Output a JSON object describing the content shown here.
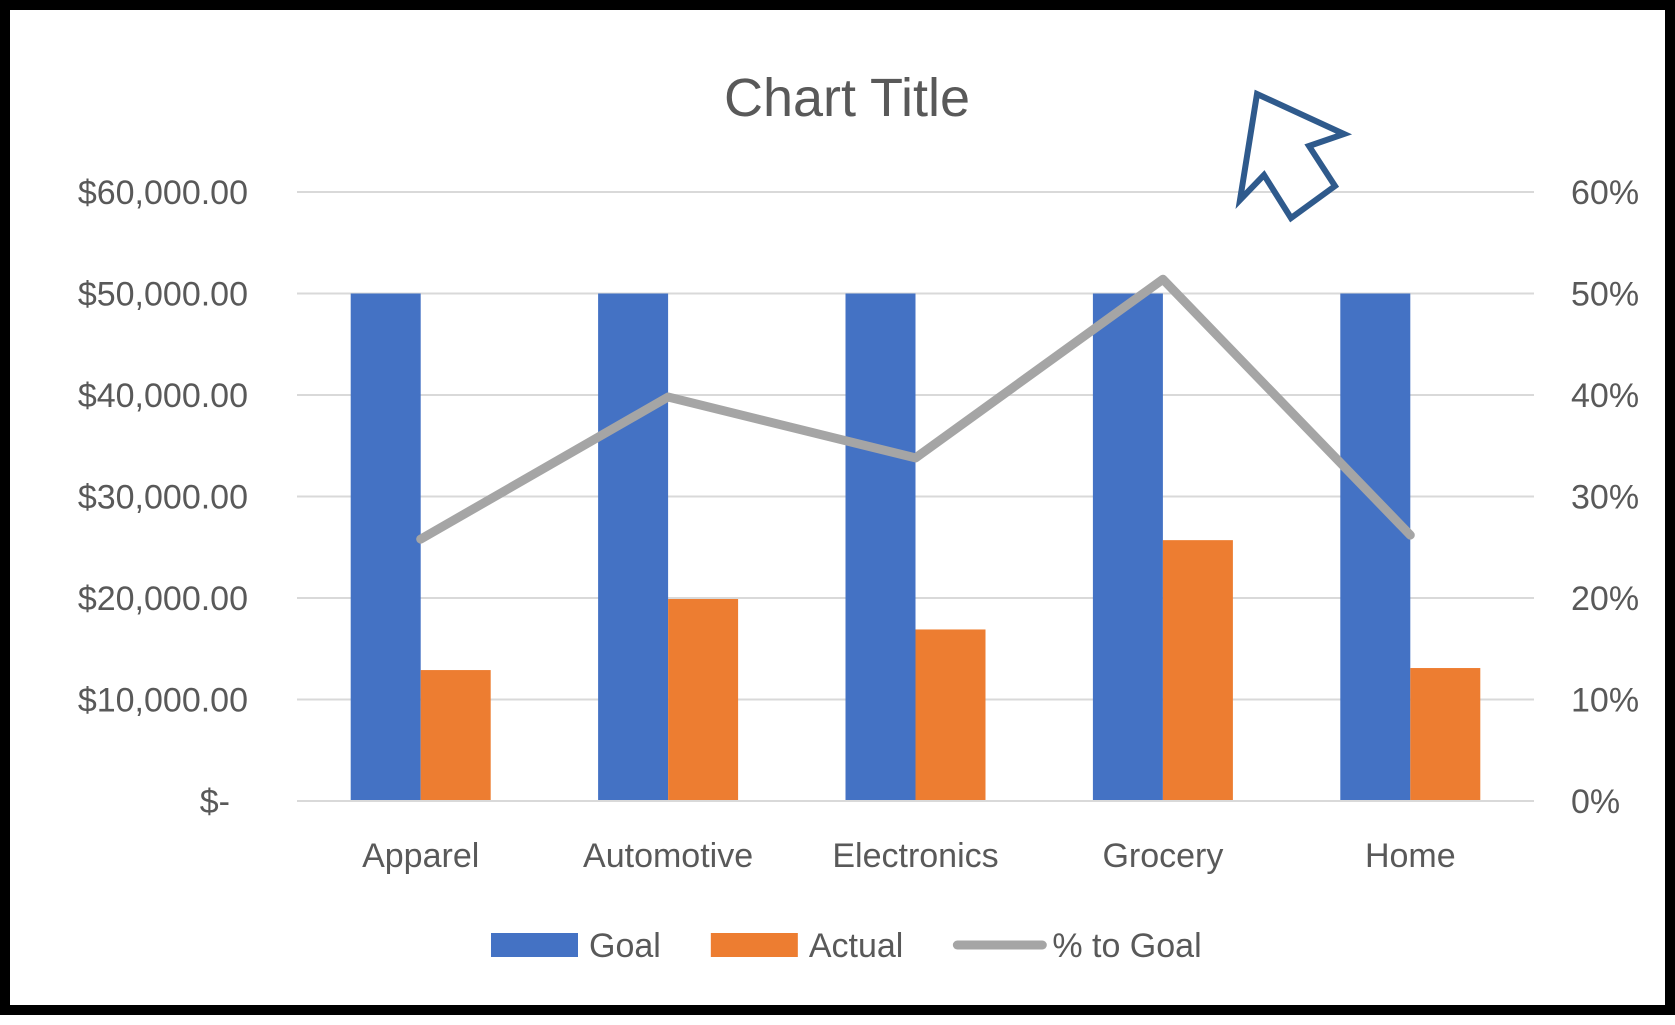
{
  "chart_data": {
    "type": "bar",
    "title": "Chart Title",
    "categories": [
      "Apparel",
      "Automotive",
      "Electronics",
      "Grocery",
      "Home"
    ],
    "series": [
      {
        "name": "Goal",
        "type": "bar",
        "axis": "left",
        "color": "#4472C4",
        "values": [
          50000,
          50000,
          50000,
          50000,
          50000
        ]
      },
      {
        "name": "Actual",
        "type": "bar",
        "axis": "left",
        "color": "#ED7D31",
        "values": [
          12900,
          19900,
          16900,
          25700,
          13100
        ]
      },
      {
        "name": "% to Goal",
        "type": "line",
        "axis": "right",
        "color": "#A5A5A5",
        "values": [
          0.258,
          0.398,
          0.338,
          0.514,
          0.262
        ]
      }
    ],
    "y_left": {
      "ylim": [
        0,
        60000
      ],
      "ticks": [
        0,
        10000,
        20000,
        30000,
        40000,
        50000,
        60000
      ],
      "tick_labels": [
        "$-",
        "$10,000.00",
        "$20,000.00",
        "$30,000.00",
        "$40,000.00",
        "$50,000.00",
        "$60,000.00"
      ]
    },
    "y_right": {
      "ylim": [
        0,
        0.6
      ],
      "ticks": [
        0,
        0.1,
        0.2,
        0.3,
        0.4,
        0.5,
        0.6
      ],
      "tick_labels": [
        "0%",
        "10%",
        "20%",
        "30%",
        "40%",
        "50%",
        "60%"
      ]
    },
    "grid": true,
    "gridline_color": "#D9D9D9",
    "legend_position": "bottom"
  },
  "annotation": {
    "icon": "arrow-cursor-icon",
    "color": "#2F5A8C"
  }
}
